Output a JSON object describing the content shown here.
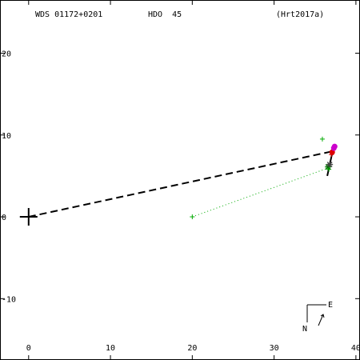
{
  "chart_data": {
    "type": "scatter",
    "header": {
      "wds_id": "WDS 01172+0201",
      "discoverer": "HDO  45",
      "orbit_ref": "(Hrt2017a)"
    },
    "xlim": [
      -3.5,
      40.5
    ],
    "ylim": [
      -17.5,
      26.5
    ],
    "x_ticks": [
      0,
      10,
      20,
      30,
      40
    ],
    "y_ticks": [
      20,
      10,
      0,
      -10
    ],
    "primary": {
      "x": 0,
      "y": 0
    },
    "orbit_segment": {
      "x": [
        36.5,
        37.3
      ],
      "y": [
        5.0,
        8.7
      ]
    },
    "periastron_line": {
      "from": [
        0,
        0
      ],
      "to": [
        37.1,
        8.0
      ]
    },
    "observations": [
      {
        "x": 20.0,
        "y": 0.0,
        "marker": "plus",
        "color": "#00aa00"
      },
      {
        "x": 35.9,
        "y": 9.5,
        "marker": "plus",
        "color": "#00aa00"
      },
      {
        "x": 36.6,
        "y": 6.1,
        "marker": "star",
        "color": "#007700"
      },
      {
        "x": 36.8,
        "y": 6.4,
        "marker": "star",
        "color": "#444444"
      },
      {
        "x": 36.7,
        "y": 5.8,
        "marker": "plus",
        "color": "#00aa00"
      },
      {
        "x": 37.1,
        "y": 7.9,
        "marker": "circle",
        "color": "#dd0000"
      },
      {
        "x": 37.3,
        "y": 8.4,
        "marker": "circle",
        "color": "#cc00cc"
      },
      {
        "x": 37.4,
        "y": 8.6,
        "marker": "circle",
        "color": "#cc00cc"
      },
      {
        "x": 37.0,
        "y": 7.6,
        "marker": "plus",
        "color": "#dd0000"
      }
    ],
    "residual_line": {
      "from": [
        20.0,
        0.0
      ],
      "to": [
        36.7,
        6.0
      ],
      "color": "#00aa00"
    },
    "compass": {
      "north": "N",
      "east": "E"
    },
    "colors": {
      "axes": "#000000",
      "orbit": "#000000",
      "obs_green": "#00aa00",
      "obs_magenta": "#cc00cc",
      "obs_red": "#dd0000"
    }
  }
}
